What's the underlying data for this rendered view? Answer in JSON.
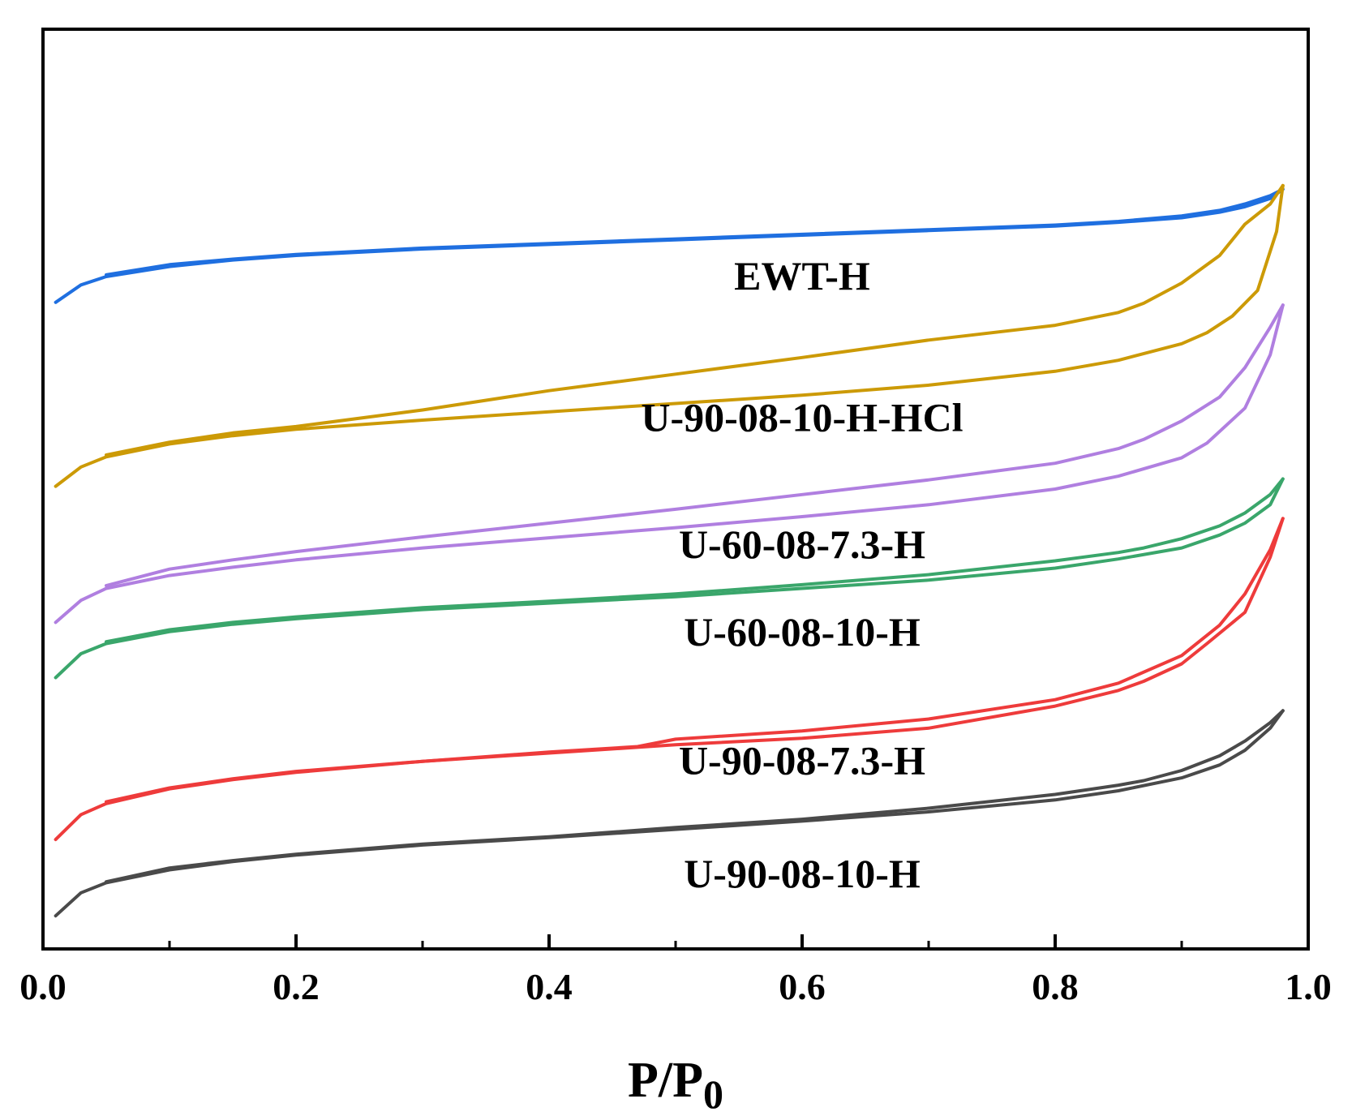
{
  "chart_data": {
    "type": "line",
    "title": "",
    "xlabel": "P/P",
    "xlabel_subscript": "0",
    "ylabel": "",
    "xlim": [
      0.0,
      1.0
    ],
    "ylim": [
      0,
      100
    ],
    "y_ticks_shown": false,
    "grid": false,
    "x_major_ticks": [
      0.0,
      0.2,
      0.4,
      0.6,
      0.8,
      1.0
    ],
    "x_tick_labels": [
      "0.0",
      "0.2",
      "0.4",
      "0.6",
      "0.8",
      "1.0"
    ],
    "x_minor_ticks": [
      0.1,
      0.3,
      0.5,
      0.7,
      0.9
    ],
    "series": [
      {
        "name": "EWT-H",
        "color": "#1f6fe0",
        "label_at": [
          0.6,
          71.7
        ],
        "adsorption": [
          [
            0.01,
            70.3
          ],
          [
            0.03,
            72.2
          ],
          [
            0.05,
            73.1
          ],
          [
            0.1,
            74.2
          ],
          [
            0.15,
            74.9
          ],
          [
            0.2,
            75.4
          ],
          [
            0.3,
            76.1
          ],
          [
            0.4,
            76.6
          ],
          [
            0.5,
            77.1
          ],
          [
            0.6,
            77.6
          ],
          [
            0.7,
            78.1
          ],
          [
            0.8,
            78.6
          ],
          [
            0.85,
            79.0
          ],
          [
            0.9,
            79.5
          ],
          [
            0.93,
            80.1
          ],
          [
            0.95,
            80.7
          ],
          [
            0.97,
            81.6
          ],
          [
            0.98,
            82.6
          ]
        ],
        "desorption": [
          [
            0.98,
            82.6
          ],
          [
            0.97,
            81.9
          ],
          [
            0.95,
            81.0
          ],
          [
            0.93,
            80.3
          ],
          [
            0.9,
            79.7
          ],
          [
            0.85,
            79.1
          ],
          [
            0.8,
            78.7
          ],
          [
            0.7,
            78.2
          ],
          [
            0.6,
            77.7
          ],
          [
            0.5,
            77.2
          ],
          [
            0.4,
            76.7
          ],
          [
            0.3,
            76.2
          ],
          [
            0.2,
            75.5
          ],
          [
            0.15,
            75.0
          ],
          [
            0.1,
            74.4
          ],
          [
            0.05,
            73.3
          ]
        ]
      },
      {
        "name": "U-90-08-10-H-HCl",
        "color": "#cc9a06",
        "label_at": [
          0.6,
          56.3
        ],
        "adsorption": [
          [
            0.01,
            50.3
          ],
          [
            0.03,
            52.4
          ],
          [
            0.05,
            53.5
          ],
          [
            0.1,
            54.9
          ],
          [
            0.15,
            55.8
          ],
          [
            0.2,
            56.5
          ],
          [
            0.3,
            57.5
          ],
          [
            0.4,
            58.4
          ],
          [
            0.5,
            59.3
          ],
          [
            0.6,
            60.2
          ],
          [
            0.7,
            61.3
          ],
          [
            0.8,
            62.8
          ],
          [
            0.85,
            64.0
          ],
          [
            0.9,
            65.8
          ],
          [
            0.92,
            67.0
          ],
          [
            0.94,
            68.8
          ],
          [
            0.96,
            71.6
          ],
          [
            0.975,
            78.0
          ],
          [
            0.98,
            83.0
          ]
        ],
        "desorption": [
          [
            0.98,
            83.0
          ],
          [
            0.97,
            81.0
          ],
          [
            0.95,
            78.8
          ],
          [
            0.93,
            75.4
          ],
          [
            0.9,
            72.4
          ],
          [
            0.87,
            70.2
          ],
          [
            0.85,
            69.2
          ],
          [
            0.8,
            67.8
          ],
          [
            0.7,
            66.2
          ],
          [
            0.6,
            64.3
          ],
          [
            0.5,
            62.5
          ],
          [
            0.4,
            60.7
          ],
          [
            0.3,
            58.6
          ],
          [
            0.2,
            56.8
          ],
          [
            0.15,
            56.1
          ],
          [
            0.1,
            55.1
          ],
          [
            0.05,
            53.7
          ]
        ]
      },
      {
        "name": "U-60-08-7.3-H",
        "color": "#b07fe0",
        "label_at": [
          0.6,
          42.5
        ],
        "adsorption": [
          [
            0.01,
            35.5
          ],
          [
            0.03,
            37.9
          ],
          [
            0.05,
            39.2
          ],
          [
            0.1,
            40.6
          ],
          [
            0.15,
            41.5
          ],
          [
            0.2,
            42.3
          ],
          [
            0.3,
            43.6
          ],
          [
            0.4,
            44.7
          ],
          [
            0.5,
            45.8
          ],
          [
            0.6,
            47.0
          ],
          [
            0.7,
            48.3
          ],
          [
            0.8,
            50.0
          ],
          [
            0.85,
            51.4
          ],
          [
            0.9,
            53.4
          ],
          [
            0.92,
            55.0
          ],
          [
            0.95,
            58.8
          ],
          [
            0.97,
            64.6
          ],
          [
            0.98,
            70.0
          ]
        ],
        "desorption": [
          [
            0.98,
            70.0
          ],
          [
            0.97,
            67.6
          ],
          [
            0.95,
            63.2
          ],
          [
            0.93,
            60.0
          ],
          [
            0.9,
            57.4
          ],
          [
            0.87,
            55.4
          ],
          [
            0.85,
            54.4
          ],
          [
            0.8,
            52.8
          ],
          [
            0.7,
            51.0
          ],
          [
            0.6,
            49.4
          ],
          [
            0.5,
            47.8
          ],
          [
            0.4,
            46.3
          ],
          [
            0.3,
            44.8
          ],
          [
            0.2,
            43.2
          ],
          [
            0.15,
            42.3
          ],
          [
            0.1,
            41.3
          ],
          [
            0.05,
            39.5
          ]
        ]
      },
      {
        "name": "U-60-08-10-H",
        "color": "#3aa66b",
        "label_at": [
          0.6,
          33.0
        ],
        "adsorption": [
          [
            0.01,
            29.5
          ],
          [
            0.03,
            32.1
          ],
          [
            0.05,
            33.2
          ],
          [
            0.1,
            34.5
          ],
          [
            0.15,
            35.3
          ],
          [
            0.2,
            35.9
          ],
          [
            0.3,
            36.9
          ],
          [
            0.4,
            37.6
          ],
          [
            0.5,
            38.3
          ],
          [
            0.6,
            39.2
          ],
          [
            0.7,
            40.1
          ],
          [
            0.8,
            41.4
          ],
          [
            0.85,
            42.4
          ],
          [
            0.9,
            43.6
          ],
          [
            0.93,
            45.0
          ],
          [
            0.95,
            46.3
          ],
          [
            0.97,
            48.3
          ],
          [
            0.98,
            51.1
          ]
        ],
        "desorption": [
          [
            0.98,
            51.1
          ],
          [
            0.97,
            49.4
          ],
          [
            0.95,
            47.4
          ],
          [
            0.93,
            46.0
          ],
          [
            0.9,
            44.6
          ],
          [
            0.87,
            43.6
          ],
          [
            0.85,
            43.1
          ],
          [
            0.8,
            42.2
          ],
          [
            0.7,
            40.7
          ],
          [
            0.6,
            39.6
          ],
          [
            0.5,
            38.6
          ],
          [
            0.4,
            37.8
          ],
          [
            0.3,
            37.1
          ],
          [
            0.2,
            36.1
          ],
          [
            0.15,
            35.5
          ],
          [
            0.1,
            34.7
          ],
          [
            0.05,
            33.4
          ]
        ]
      },
      {
        "name": "U-90-08-7.3-H",
        "color": "#ee3b3b",
        "label_at": [
          0.6,
          19.0
        ],
        "adsorption": [
          [
            0.01,
            11.9
          ],
          [
            0.03,
            14.6
          ],
          [
            0.05,
            15.8
          ],
          [
            0.1,
            17.4
          ],
          [
            0.15,
            18.4
          ],
          [
            0.2,
            19.2
          ],
          [
            0.3,
            20.4
          ],
          [
            0.4,
            21.4
          ],
          [
            0.47,
            22.0
          ],
          [
            0.5,
            22.8
          ],
          [
            0.6,
            23.7
          ],
          [
            0.7,
            25.0
          ],
          [
            0.8,
            27.1
          ],
          [
            0.85,
            28.9
          ],
          [
            0.9,
            31.9
          ],
          [
            0.93,
            35.2
          ],
          [
            0.95,
            38.6
          ],
          [
            0.97,
            43.4
          ],
          [
            0.98,
            46.8
          ]
        ],
        "desorption": [
          [
            0.98,
            46.8
          ],
          [
            0.97,
            42.6
          ],
          [
            0.95,
            36.6
          ],
          [
            0.92,
            33.2
          ],
          [
            0.9,
            31.0
          ],
          [
            0.87,
            29.1
          ],
          [
            0.85,
            28.1
          ],
          [
            0.8,
            26.4
          ],
          [
            0.7,
            24.0
          ],
          [
            0.6,
            22.9
          ],
          [
            0.5,
            22.2
          ],
          [
            0.4,
            21.3
          ],
          [
            0.3,
            20.4
          ],
          [
            0.2,
            19.3
          ],
          [
            0.15,
            18.5
          ],
          [
            0.1,
            17.5
          ],
          [
            0.05,
            16.0
          ]
        ]
      },
      {
        "name": "U-90-08-10-H",
        "color": "#4a4a4a",
        "label_at": [
          0.6,
          6.7
        ],
        "adsorption": [
          [
            0.01,
            3.6
          ],
          [
            0.03,
            6.1
          ],
          [
            0.05,
            7.2
          ],
          [
            0.1,
            8.6
          ],
          [
            0.15,
            9.5
          ],
          [
            0.2,
            10.2
          ],
          [
            0.3,
            11.3
          ],
          [
            0.4,
            12.1
          ],
          [
            0.5,
            13.0
          ],
          [
            0.6,
            13.9
          ],
          [
            0.7,
            14.9
          ],
          [
            0.8,
            16.2
          ],
          [
            0.85,
            17.2
          ],
          [
            0.9,
            18.6
          ],
          [
            0.93,
            20.0
          ],
          [
            0.95,
            21.6
          ],
          [
            0.97,
            24.0
          ],
          [
            0.98,
            25.9
          ]
        ],
        "desorption": [
          [
            0.98,
            25.9
          ],
          [
            0.97,
            24.6
          ],
          [
            0.95,
            22.6
          ],
          [
            0.93,
            21.0
          ],
          [
            0.9,
            19.4
          ],
          [
            0.87,
            18.3
          ],
          [
            0.85,
            17.8
          ],
          [
            0.8,
            16.8
          ],
          [
            0.7,
            15.3
          ],
          [
            0.6,
            14.1
          ],
          [
            0.5,
            13.2
          ],
          [
            0.4,
            12.2
          ],
          [
            0.3,
            11.4
          ],
          [
            0.2,
            10.3
          ],
          [
            0.15,
            9.6
          ],
          [
            0.1,
            8.8
          ],
          [
            0.05,
            7.3
          ]
        ]
      }
    ]
  }
}
